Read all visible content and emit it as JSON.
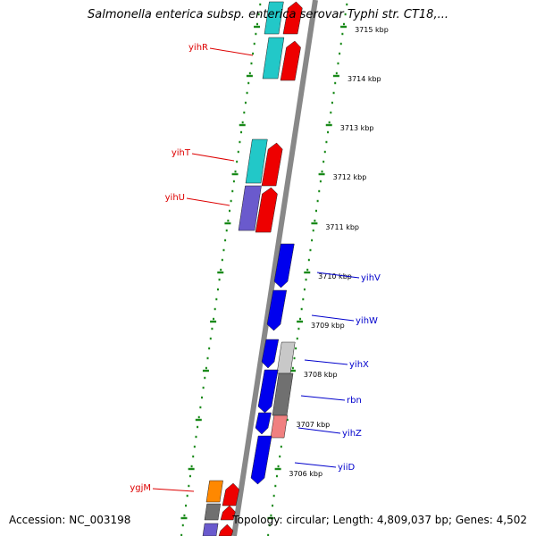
{
  "title": "Salmonella enterica subsp. enterica serovar Typhi str. CT18,...",
  "footer": {
    "accession": "Accession: NC_003198",
    "summary": "Topology: circular; Length: 4,809,037 bp; Genes: 4,502"
  },
  "colors": {
    "backbone": "#888888",
    "tick_ring": "#1a8a1a",
    "left_label": "#dd0000",
    "right_label": "#0000cc",
    "red_gene": "#ee0000",
    "cyan_gene": "#22c8c8",
    "purple_gene": "#6a5acd",
    "blue_gene": "#0000ee",
    "grey_gene": "#707070",
    "orange_gene": "#ff8800"
  },
  "scale_labels": [
    "3715 kbp",
    "3714 kbp",
    "3713 kbp",
    "3712 kbp",
    "3711 kbp",
    "3710 kbp",
    "3709 kbp",
    "3708 kbp",
    "3707 kbp",
    "3706 kbp"
  ],
  "left_genes": [
    "yihR",
    "yihT",
    "yihU",
    "ygjM"
  ],
  "right_genes": [
    "yihV",
    "yihW",
    "yihX",
    "rbn",
    "yihZ",
    "yiiD"
  ]
}
